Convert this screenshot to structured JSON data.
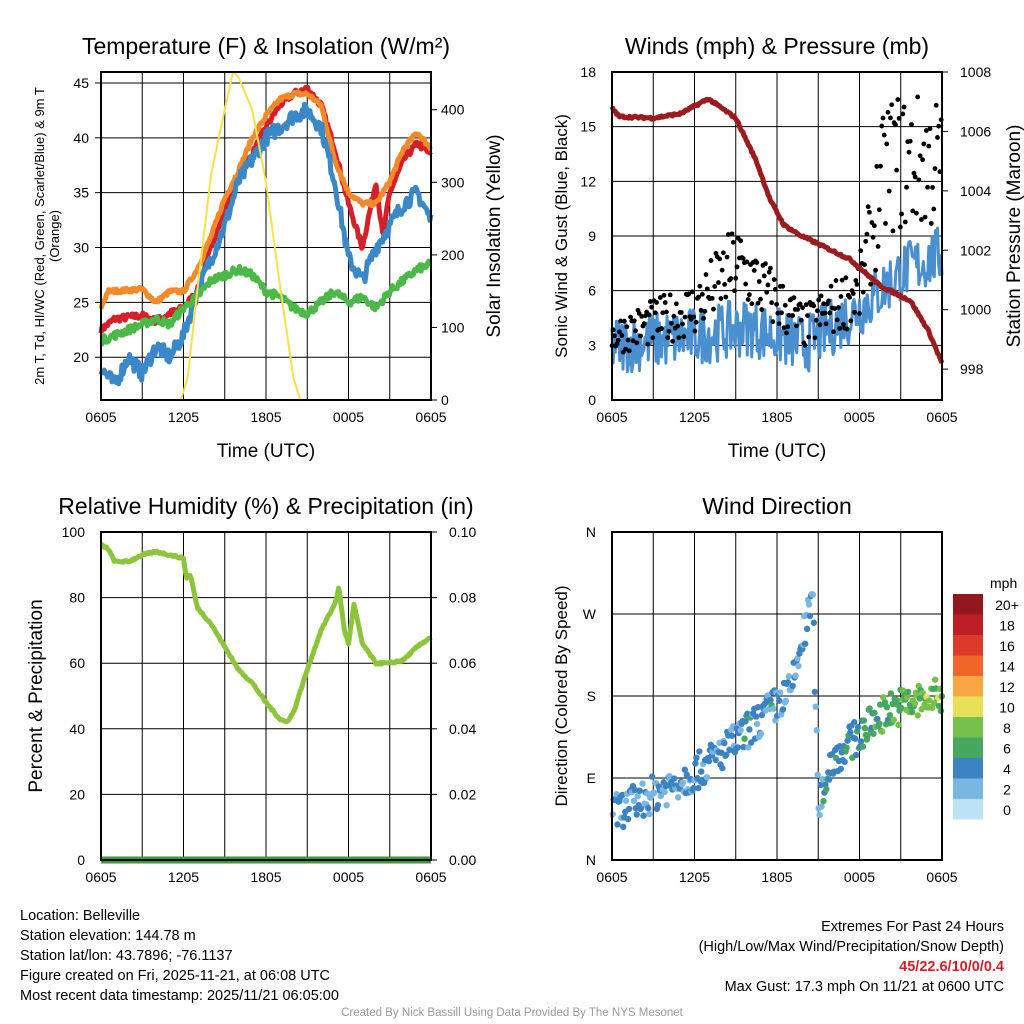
{
  "chart_data": [
    {
      "type": "line",
      "title": "Temperature (F) & Insolation (W/m²)",
      "xlabel": "Time (UTC)",
      "ylabel": "2m T, Td, HI/WC (Red, Green, Scarlet/Blue) & 9m T (Orange)",
      "ylabel_line1": "2m T, T",
      "ylabel_sub": "d",
      "ylabel_line1b": ", HI/WC (Red, Green, Scarlet/Blue)",
      "ylabel_line2": "& 9m T (Orange)",
      "y2label": "Solar Insolation (Yellow)",
      "xticks": [
        "0605",
        "1205",
        "1805",
        "0005",
        "0605"
      ],
      "ylim": [
        16.1,
        46
      ],
      "yticks": [
        20,
        25,
        30,
        35,
        40,
        45
      ],
      "y2lim": [
        0,
        452
      ],
      "y2ticks": [
        0,
        100,
        200,
        300,
        400
      ],
      "series": [
        {
          "name": "2m T",
          "color": "#d42028",
          "axis": "left",
          "x": [
            0,
            1,
            3,
            4,
            5,
            6,
            7,
            8,
            9,
            10,
            11,
            12,
            13,
            14,
            15,
            16,
            17,
            18,
            19,
            19.5,
            20,
            20.5,
            21,
            22,
            23,
            24
          ],
          "y": [
            22.5,
            23.5,
            23.8,
            23.3,
            24,
            24.5,
            26,
            30,
            33.5,
            36.5,
            38.5,
            41,
            43,
            44,
            44.5,
            43,
            39,
            34,
            30,
            33,
            36,
            31,
            35,
            38,
            39.5,
            38.5
          ]
        },
        {
          "name": "9m T",
          "color": "#f28a2a",
          "axis": "left",
          "x": [
            0,
            0.5,
            3,
            4,
            5,
            6,
            7,
            8,
            9,
            10,
            11,
            12,
            13,
            14,
            15,
            16,
            17,
            18,
            19,
            20,
            21,
            22,
            23,
            24
          ],
          "y": [
            24.5,
            26,
            26.2,
            25,
            26,
            26,
            28,
            31,
            34.5,
            37,
            40,
            42,
            43.5,
            44,
            44,
            43,
            38,
            35,
            34,
            34,
            36,
            39,
            40.5,
            39
          ]
        },
        {
          "name": "HI/WC",
          "color": "#3b88c8",
          "axis": "left",
          "x": [
            0,
            1,
            2,
            3,
            4,
            5,
            6,
            7,
            8,
            9,
            10,
            11,
            12,
            13,
            14,
            15,
            16,
            17,
            18,
            19,
            20,
            21,
            22,
            23,
            24
          ],
          "y": [
            19,
            17.5,
            20,
            18.5,
            21,
            20,
            22,
            26,
            29,
            32,
            36,
            38,
            40,
            41,
            42,
            42.5,
            41,
            36,
            29,
            27,
            30,
            32,
            34,
            35,
            32.5
          ]
        },
        {
          "name": "Td",
          "color": "#4cb848",
          "axis": "left",
          "x": [
            0,
            1,
            2,
            3,
            4,
            5,
            6,
            7,
            8,
            9,
            10,
            11,
            12,
            13,
            14,
            15,
            16,
            17,
            18,
            19,
            20,
            21,
            22,
            23,
            24
          ],
          "y": [
            21.5,
            22,
            22.5,
            23,
            23.5,
            23,
            24.5,
            25.5,
            27,
            27.5,
            28,
            27.5,
            26,
            25.5,
            24.5,
            24,
            25,
            26,
            25,
            25.5,
            24.5,
            26,
            27,
            28,
            28.5
          ]
        },
        {
          "name": "Solar",
          "color": "#f7e04a",
          "axis": "right",
          "x": [
            0,
            5.8,
            6.3,
            7,
            8,
            9,
            9.6,
            10,
            11,
            12,
            13,
            14,
            14.5,
            24
          ],
          "y": [
            0,
            0,
            30,
            150,
            310,
            400,
            452,
            445,
            400,
            300,
            160,
            30,
            0,
            0
          ]
        }
      ]
    },
    {
      "type": "line",
      "title": "Winds (mph) & Pressure (mb)",
      "xlabel": "Time (UTC)",
      "ylabel": "Sonic Wind & Gust (Blue, Black)",
      "y2label": "Station Pressure (Maroon)",
      "xticks": [
        "0605",
        "1205",
        "1805",
        "0005",
        "0605"
      ],
      "ylim": [
        0,
        18
      ],
      "yticks": [
        0,
        3,
        6,
        9,
        12,
        15,
        18
      ],
      "y2lim": [
        996.96,
        1008
      ],
      "y2ticks": [
        998,
        1000,
        1002,
        1004,
        1006,
        1008
      ],
      "series": [
        {
          "name": "Sonic Wind",
          "color": "#4a90d0",
          "axis": "left",
          "x": [
            0,
            6,
            10,
            14,
            18,
            21,
            24
          ],
          "y": [
            3,
            3.5,
            4,
            3,
            5,
            7,
            8
          ]
        },
        {
          "name": "Gust",
          "color": "#000000",
          "axis": "left",
          "x": [
            0,
            6,
            9,
            14,
            18,
            20,
            24
          ],
          "y": [
            3.5,
            5,
            7.5,
            4,
            6,
            13,
            13
          ]
        },
        {
          "name": "Station Pressure",
          "color": "#9b1b1e",
          "axis": "right",
          "x": [
            0,
            0.5,
            3,
            5,
            7,
            9,
            10.5,
            11.5,
            12.5,
            13.7,
            17.3,
            19.5,
            21.7,
            23,
            24
          ],
          "y": [
            1006.8,
            1006.5,
            1006.45,
            1006.6,
            1007.1,
            1006.45,
            1005,
            1003.7,
            1002.85,
            1002.5,
            1001.7,
            1000.8,
            1000.3,
            999.3,
            998.2
          ]
        }
      ]
    },
    {
      "type": "line",
      "title": "Relative Humidity (%) & Precipitation (in)",
      "ylabel": "Percent & Precipitation",
      "xticks": [
        "0605",
        "1205",
        "1805",
        "0005",
        "0605"
      ],
      "ylim": [
        0,
        100
      ],
      "yticks": [
        0,
        20,
        40,
        60,
        80,
        100
      ],
      "y2lim": [
        0,
        0.1
      ],
      "y2ticks": [
        "0.00",
        "0.02",
        "0.04",
        "0.06",
        "0.08",
        "0.10"
      ],
      "series": [
        {
          "name": "Relative Humidity",
          "color": "#8cc43c",
          "axis": "left",
          "x": [
            0,
            0.5,
            1,
            2,
            3,
            4,
            5,
            6,
            6.2,
            6.5,
            7,
            8,
            9,
            10,
            11,
            12,
            13,
            13.5,
            14,
            15,
            16,
            17,
            17.3,
            17.7,
            18,
            18.4,
            19,
            20,
            21,
            22,
            23,
            24
          ],
          "y": [
            96,
            95,
            91,
            91,
            93,
            94,
            93,
            92,
            86,
            87,
            77,
            72,
            65,
            58,
            54,
            48,
            43,
            42,
            45,
            58,
            70,
            78,
            83,
            70,
            66,
            78,
            66,
            60,
            60,
            61,
            65,
            68
          ]
        },
        {
          "name": "Precipitation",
          "color": "#3a9a3a",
          "axis": "right",
          "x": [
            0,
            24
          ],
          "y": [
            0,
            0
          ]
        }
      ]
    },
    {
      "type": "scatter",
      "title": "Wind Direction",
      "ylabel": "Direction (Colored By Speed)",
      "xticks": [
        "0605",
        "1205",
        "1805",
        "0005",
        "0605"
      ],
      "ylim": [
        0,
        360
      ],
      "yticks": [
        {
          "v": 0,
          "l": "N"
        },
        {
          "v": 90,
          "l": "E"
        },
        {
          "v": 180,
          "l": "S"
        },
        {
          "v": 270,
          "l": "W"
        },
        {
          "v": 360,
          "l": "N"
        }
      ],
      "direction_trend": {
        "x": [
          0,
          6,
          9,
          13,
          14.3,
          14.6,
          15,
          16,
          20,
          24
        ],
        "y": [
          50,
          95,
          130,
          185,
          270,
          290,
          60,
          110,
          165,
          180
        ]
      },
      "legend": {
        "title": "mph",
        "labels": [
          "20+",
          "18",
          "16",
          "14",
          "12",
          "10",
          "8",
          "6",
          "4",
          "2",
          "0"
        ],
        "colors": [
          "#93171c",
          "#be1e25",
          "#dd3a2c",
          "#f0652a",
          "#f8a843",
          "#e8e058",
          "#78c04c",
          "#46a85e",
          "#3d82c2",
          "#7ab6e2",
          "#bde3f5"
        ]
      }
    }
  ],
  "footer": {
    "location": "Location: Belleville",
    "elevation": "Station elevation: 144.78 m",
    "latlon": "Station lat/lon: 43.7896; -76.1137",
    "created": "Figure created on Fri, 2025-11-21, at 06:08 UTC",
    "recent": "Most recent data timestamp: 2025/11/21 06:05:00",
    "extremes_title": "Extremes For Past 24 Hours",
    "extremes_sub": "(High/Low/Max Wind/Precipitation/Snow Depth)",
    "extremes_values": "45/22.6/10/0/0.4",
    "max_gust": "Max Gust: 17.3 mph On 11/21 at 0600 UTC",
    "credit": "Created By Nick Bassill Using Data Provided By The NYS Mesonet"
  }
}
